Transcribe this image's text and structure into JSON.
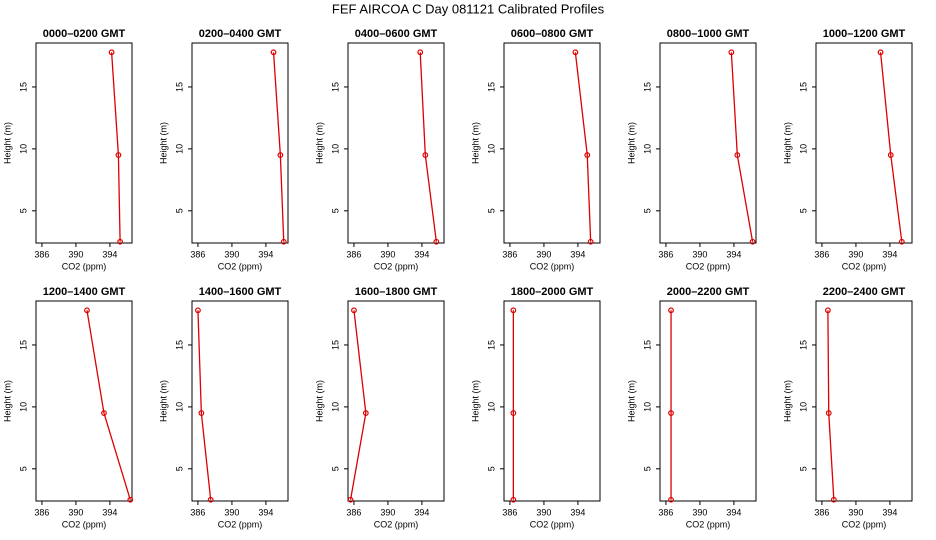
{
  "title": "FEF AIRCOA C  Day 081121  Calibrated Profiles",
  "chart_data": [
    {
      "type": "line",
      "title": "0000–0200 GMT",
      "xlabel": "CO2 (ppm)",
      "ylabel": "Height (m)",
      "series": [
        {
          "color": "#dd0000",
          "x": [
            394.2,
            395.0,
            395.2
          ],
          "values": [
            17.8,
            9.5,
            2.5
          ]
        }
      ],
      "xlim": [
        385.3,
        396.6
      ],
      "xticks": [
        386,
        390,
        394
      ],
      "ylim": [
        2.4,
        18.55
      ],
      "yticks": [
        5,
        10,
        15
      ]
    },
    {
      "type": "line",
      "title": "0200–0400 GMT",
      "xlabel": "CO2 (ppm)",
      "ylabel": "Height (m)",
      "series": [
        {
          "color": "#dd0000",
          "x": [
            394.9,
            395.7,
            396.1
          ],
          "values": [
            17.8,
            9.5,
            2.5
          ]
        }
      ],
      "xlim": [
        385.3,
        396.6
      ],
      "xticks": [
        386,
        390,
        394
      ],
      "ylim": [
        2.4,
        18.55
      ],
      "yticks": [
        5,
        10,
        15
      ]
    },
    {
      "type": "line",
      "title": "0400–0600 GMT",
      "xlabel": "CO2 (ppm)",
      "ylabel": "Height (m)",
      "series": [
        {
          "color": "#dd0000",
          "x": [
            393.8,
            394.4,
            395.7
          ],
          "values": [
            17.8,
            9.5,
            2.5
          ]
        }
      ],
      "xlim": [
        385.3,
        396.6
      ],
      "xticks": [
        386,
        390,
        394
      ],
      "ylim": [
        2.4,
        18.55
      ],
      "yticks": [
        5,
        10,
        15
      ]
    },
    {
      "type": "line",
      "title": "0600–0800 GMT",
      "xlabel": "CO2 (ppm)",
      "ylabel": "Height (m)",
      "series": [
        {
          "color": "#dd0000",
          "x": [
            393.7,
            395.1,
            395.5
          ],
          "values": [
            17.8,
            9.5,
            2.5
          ]
        }
      ],
      "xlim": [
        385.3,
        396.6
      ],
      "xticks": [
        386,
        390,
        394
      ],
      "ylim": [
        2.4,
        18.55
      ],
      "yticks": [
        5,
        10,
        15
      ]
    },
    {
      "type": "line",
      "title": "0800–1000 GMT",
      "xlabel": "CO2 (ppm)",
      "ylabel": "Height (m)",
      "series": [
        {
          "color": "#dd0000",
          "x": [
            393.7,
            394.4,
            396.2
          ],
          "values": [
            17.8,
            9.5,
            2.5
          ]
        }
      ],
      "xlim": [
        385.3,
        396.6
      ],
      "xticks": [
        386,
        390,
        394
      ],
      "ylim": [
        2.4,
        18.55
      ],
      "yticks": [
        5,
        10,
        15
      ]
    },
    {
      "type": "line",
      "title": "1000–1200 GMT",
      "xlabel": "CO2 (ppm)",
      "ylabel": "Height (m)",
      "series": [
        {
          "color": "#dd0000",
          "x": [
            392.9,
            394.1,
            395.4
          ],
          "values": [
            17.8,
            9.5,
            2.5
          ]
        }
      ],
      "xlim": [
        385.3,
        396.6
      ],
      "xticks": [
        386,
        390,
        394
      ],
      "ylim": [
        2.4,
        18.55
      ],
      "yticks": [
        5,
        10,
        15
      ]
    },
    {
      "type": "line",
      "title": "1200–1400 GMT",
      "xlabel": "CO2 (ppm)",
      "ylabel": "Height (m)",
      "series": [
        {
          "color": "#dd0000",
          "x": [
            391.3,
            393.3,
            396.4
          ],
          "values": [
            17.8,
            9.5,
            2.5
          ]
        }
      ],
      "xlim": [
        385.3,
        396.6
      ],
      "xticks": [
        386,
        390,
        394
      ],
      "ylim": [
        2.4,
        18.55
      ],
      "yticks": [
        5,
        10,
        15
      ]
    },
    {
      "type": "line",
      "title": "1400–1600 GMT",
      "xlabel": "CO2 (ppm)",
      "ylabel": "Height (m)",
      "series": [
        {
          "color": "#dd0000",
          "x": [
            386.0,
            386.4,
            387.5
          ],
          "values": [
            17.8,
            9.5,
            2.5
          ]
        }
      ],
      "xlim": [
        385.3,
        396.6
      ],
      "xticks": [
        386,
        390,
        394
      ],
      "ylim": [
        2.4,
        18.55
      ],
      "yticks": [
        5,
        10,
        15
      ]
    },
    {
      "type": "line",
      "title": "1600–1800 GMT",
      "xlabel": "CO2 (ppm)",
      "ylabel": "Height (m)",
      "series": [
        {
          "color": "#dd0000",
          "x": [
            386.0,
            387.4,
            385.6
          ],
          "values": [
            17.8,
            9.5,
            2.5
          ]
        }
      ],
      "xlim": [
        385.3,
        396.6
      ],
      "xticks": [
        386,
        390,
        394
      ],
      "ylim": [
        2.4,
        18.55
      ],
      "yticks": [
        5,
        10,
        15
      ]
    },
    {
      "type": "line",
      "title": "1800–2000 GMT",
      "xlabel": "CO2 (ppm)",
      "ylabel": "Height (m)",
      "series": [
        {
          "color": "#dd0000",
          "x": [
            386.4,
            386.4,
            386.4
          ],
          "values": [
            17.8,
            9.5,
            2.5
          ]
        }
      ],
      "xlim": [
        385.3,
        396.6
      ],
      "xticks": [
        386,
        390,
        394
      ],
      "ylim": [
        2.4,
        18.55
      ],
      "yticks": [
        5,
        10,
        15
      ]
    },
    {
      "type": "line",
      "title": "2000–2200 GMT",
      "xlabel": "CO2 (ppm)",
      "ylabel": "Height (m)",
      "series": [
        {
          "color": "#dd0000",
          "x": [
            386.6,
            386.6,
            386.6
          ],
          "values": [
            17.8,
            9.5,
            2.5
          ]
        }
      ],
      "xlim": [
        385.3,
        396.6
      ],
      "xticks": [
        386,
        390,
        394
      ],
      "ylim": [
        2.4,
        18.55
      ],
      "yticks": [
        5,
        10,
        15
      ]
    },
    {
      "type": "line",
      "title": "2200–2400 GMT",
      "xlabel": "CO2 (ppm)",
      "ylabel": "Height (m)",
      "series": [
        {
          "color": "#dd0000",
          "x": [
            386.7,
            386.8,
            387.4
          ],
          "values": [
            17.8,
            9.5,
            2.5
          ]
        }
      ],
      "xlim": [
        385.3,
        396.6
      ],
      "xticks": [
        386,
        390,
        394
      ],
      "ylim": [
        2.4,
        18.55
      ],
      "yticks": [
        5,
        10,
        15
      ]
    }
  ]
}
